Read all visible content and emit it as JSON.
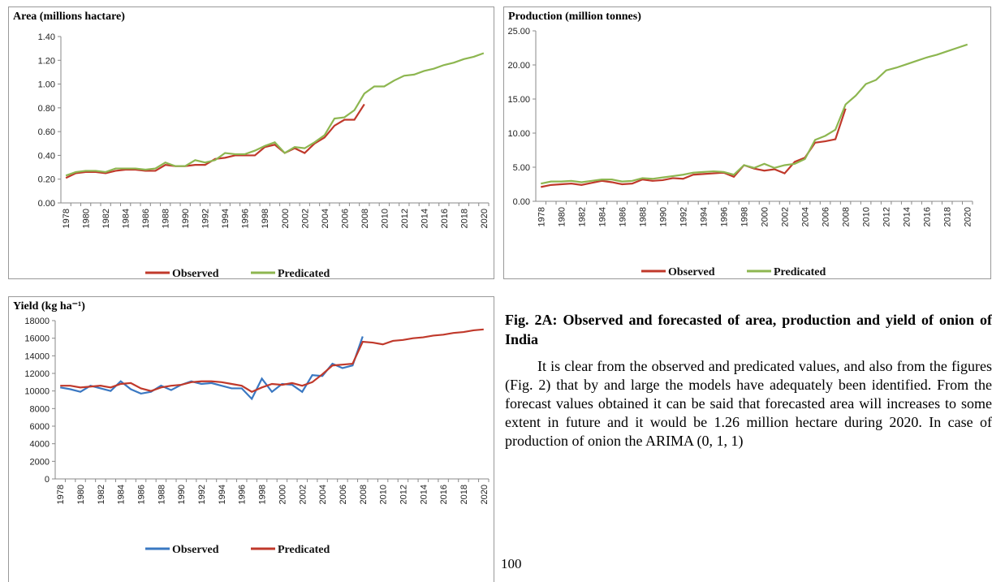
{
  "chart_data": [
    {
      "type": "line",
      "title": "Area (millions hactare)",
      "legend": "bottom",
      "categories": [
        "1978",
        null,
        "1980",
        null,
        "1982",
        null,
        "1984",
        null,
        "1986",
        null,
        "1988",
        null,
        "1990",
        null,
        "1992",
        null,
        "1994",
        null,
        "1996",
        null,
        "1998",
        null,
        "2000",
        null,
        "2002",
        null,
        "2004",
        null,
        "2006",
        null,
        "2008",
        null,
        "2010",
        null,
        "2012",
        null,
        "2014",
        null,
        "2016",
        null,
        "2018",
        null,
        "2020"
      ],
      "series": [
        {
          "name": "Observed",
          "color": "#c0392b",
          "values": [
            0.21,
            0.25,
            0.26,
            0.26,
            0.25,
            0.27,
            0.28,
            0.28,
            0.27,
            0.27,
            0.32,
            0.31,
            0.31,
            0.32,
            0.32,
            0.37,
            0.38,
            0.4,
            0.4,
            0.4,
            0.47,
            0.49,
            0.42,
            0.46,
            0.42,
            0.5,
            0.55,
            0.65,
            0.7,
            0.7,
            0.83,
            null,
            null,
            null,
            null,
            null,
            null,
            null,
            null,
            null,
            null,
            null,
            null
          ]
        },
        {
          "name": "Predicated",
          "color": "#8db650",
          "values": [
            0.23,
            0.26,
            0.27,
            0.27,
            0.26,
            0.29,
            0.29,
            0.29,
            0.28,
            0.29,
            0.34,
            0.31,
            0.31,
            0.36,
            0.34,
            0.36,
            0.42,
            0.41,
            0.41,
            0.44,
            0.48,
            0.51,
            0.42,
            0.47,
            0.46,
            0.51,
            0.57,
            0.71,
            0.72,
            0.78,
            0.92,
            0.98,
            0.98,
            1.03,
            1.07,
            1.08,
            1.11,
            1.13,
            1.16,
            1.18,
            1.21,
            1.23,
            1.26
          ]
        }
      ],
      "ylim": [
        0,
        1.4
      ],
      "yticks": [
        {
          "value": 0,
          "label": "0.00"
        },
        {
          "value": 0.2,
          "label": "0.20"
        },
        {
          "value": 0.4,
          "label": "0.40"
        },
        {
          "value": 0.6,
          "label": "0.60"
        },
        {
          "value": 0.8,
          "label": "0.80"
        },
        {
          "value": 1,
          "label": "1.00"
        },
        {
          "value": 1.2,
          "label": "1.20"
        },
        {
          "value": 1.4,
          "label": "1.40"
        }
      ]
    },
    {
      "type": "line",
      "title": "Production (million tonnes)",
      "legend": "bottom",
      "categories": [
        "1978",
        null,
        "1980",
        null,
        "1982",
        null,
        "1984",
        null,
        "1986",
        null,
        "1988",
        null,
        "1990",
        null,
        "1992",
        null,
        "1994",
        null,
        "1996",
        null,
        "1998",
        null,
        "2000",
        null,
        "2002",
        null,
        "2004",
        null,
        "2006",
        null,
        "2008",
        null,
        "2010",
        null,
        "2012",
        null,
        "2014",
        null,
        "2016",
        null,
        "2018",
        null,
        "2020"
      ],
      "series": [
        {
          "name": "Observed",
          "color": "#c0392b",
          "values": [
            2.1,
            2.4,
            2.5,
            2.6,
            2.4,
            2.7,
            3.0,
            2.8,
            2.5,
            2.6,
            3.2,
            3.0,
            3.1,
            3.4,
            3.3,
            3.9,
            4.0,
            4.1,
            4.2,
            3.6,
            5.3,
            4.8,
            4.5,
            4.7,
            4.1,
            5.8,
            6.4,
            8.6,
            8.8,
            9.1,
            13.6,
            null,
            null,
            null,
            null,
            null,
            null,
            null,
            null,
            null,
            null,
            null,
            null
          ]
        },
        {
          "name": "Predicated",
          "color": "#8db650",
          "values": [
            2.6,
            2.9,
            2.9,
            3.0,
            2.8,
            3.0,
            3.2,
            3.2,
            2.9,
            3.0,
            3.4,
            3.3,
            3.5,
            3.7,
            3.9,
            4.2,
            4.3,
            4.4,
            4.3,
            3.9,
            5.3,
            4.9,
            5.5,
            4.9,
            5.3,
            5.5,
            6.2,
            9.0,
            9.6,
            10.5,
            14.2,
            15.5,
            17.2,
            17.8,
            19.2,
            19.6,
            20.1,
            20.6,
            21.1,
            21.5,
            22.0,
            22.5,
            23.0
          ]
        }
      ],
      "ylim": [
        0,
        25
      ],
      "yticks": [
        {
          "value": 0,
          "label": "0.00"
        },
        {
          "value": 5,
          "label": "5.00"
        },
        {
          "value": 10,
          "label": "10.00"
        },
        {
          "value": 15,
          "label": "15.00"
        },
        {
          "value": 20,
          "label": "20.00"
        },
        {
          "value": 25,
          "label": "25.00"
        }
      ]
    },
    {
      "type": "line",
      "title": "Yield (kg ha⁻¹)",
      "legend": "bottom",
      "categories": [
        "1978",
        null,
        "1980",
        null,
        "1982",
        null,
        "1984",
        null,
        "1986",
        null,
        "1988",
        null,
        "1990",
        null,
        "1992",
        null,
        "1994",
        null,
        "1996",
        null,
        "1998",
        null,
        "2000",
        null,
        "2002",
        null,
        "2004",
        null,
        "2006",
        null,
        "2008",
        null,
        "2010",
        null,
        "2012",
        null,
        "2014",
        null,
        "2016",
        null,
        "2018",
        null,
        "2020"
      ],
      "series": [
        {
          "name": "Observed",
          "color": "#3a78c2",
          "values": [
            10400,
            10200,
            9900,
            10600,
            10300,
            10000,
            11100,
            10200,
            9700,
            9900,
            10600,
            10100,
            10700,
            11100,
            10800,
            10900,
            10600,
            10300,
            10300,
            9100,
            11400,
            9900,
            10800,
            10700,
            9900,
            11800,
            11700,
            13100,
            12600,
            12900,
            16200,
            null,
            null,
            null,
            null,
            null,
            null,
            null,
            null,
            null,
            null,
            null,
            null
          ]
        },
        {
          "name": "Predicated",
          "color": "#c0392b",
          "values": [
            10600,
            10600,
            10400,
            10500,
            10600,
            10400,
            10800,
            10900,
            10300,
            10000,
            10400,
            10600,
            10700,
            11000,
            11100,
            11100,
            11000,
            10800,
            10600,
            9900,
            10400,
            10800,
            10700,
            10900,
            10600,
            11000,
            11900,
            12900,
            13000,
            13100,
            15600,
            15500,
            15300,
            15700,
            15800,
            16000,
            16100,
            16300,
            16400,
            16600,
            16700,
            16900,
            17000
          ]
        }
      ],
      "ylim": [
        0,
        18000
      ],
      "yticks": [
        0,
        2000,
        4000,
        6000,
        8000,
        10000,
        12000,
        14000,
        16000,
        18000
      ]
    }
  ],
  "caption": "Fig. 2A: Observed and forecasted of area, production and yield of onion of India",
  "paragraph": "It is clear from the observed and predicated values, and also from the figures (Fig. 2) that by and large the models have adequately been identified. From the forecast values obtained it can be said that forecasted area will increases to some extent in future and it would be 1.26 million hectare during 2020. In case of production of onion the ARIMA (0, 1, 1)",
  "page_number": "100"
}
